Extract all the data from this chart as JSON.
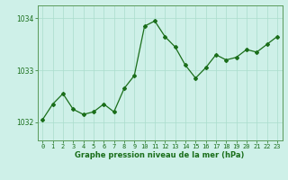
{
  "x": [
    0,
    1,
    2,
    3,
    4,
    5,
    6,
    7,
    8,
    9,
    10,
    11,
    12,
    13,
    14,
    15,
    16,
    17,
    18,
    19,
    20,
    21,
    22,
    23
  ],
  "y": [
    1032.05,
    1032.35,
    1032.55,
    1032.25,
    1032.15,
    1032.2,
    1032.35,
    1032.2,
    1032.65,
    1032.9,
    1033.85,
    1033.95,
    1033.65,
    1033.45,
    1033.1,
    1032.85,
    1033.05,
    1033.3,
    1033.2,
    1033.25,
    1033.4,
    1033.35,
    1033.5,
    1033.65
  ],
  "line_color": "#1a6e1a",
  "marker": "D",
  "marker_size": 2.0,
  "bg_color": "#cef0e8",
  "grid_color": "#aaddcc",
  "xlabel": "Graphe pression niveau de la mer (hPa)",
  "xlabel_color": "#1a6e1a",
  "tick_color": "#1a6e1a",
  "ylim": [
    1031.65,
    1034.25
  ],
  "yticks": [
    1032,
    1033,
    1034
  ],
  "xlim": [
    -0.5,
    23.5
  ],
  "spine_color": "#5a9a5a",
  "tick_fontsize": 5.0,
  "ylabel_fontsize": 5.5,
  "xlabel_fontsize": 6.0,
  "linewidth": 0.9
}
